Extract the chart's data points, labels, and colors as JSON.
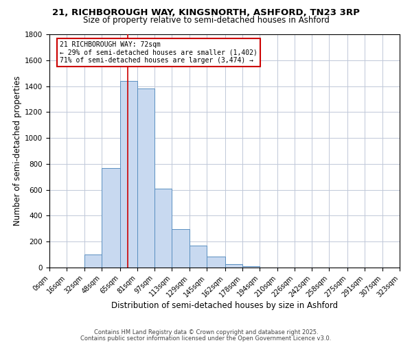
{
  "title_line1": "21, RICHBOROUGH WAY, KINGSNORTH, ASHFORD, TN23 3RP",
  "title_line2": "Size of property relative to semi-detached houses in Ashford",
  "xlabel": "Distribution of semi-detached houses by size in Ashford",
  "ylabel": "Number of semi-detached properties",
  "bin_edges": [
    0,
    16,
    32,
    48,
    65,
    81,
    97,
    113,
    129,
    145,
    162,
    178,
    194,
    210,
    226,
    242,
    258,
    275,
    291,
    307,
    323
  ],
  "bar_heights": [
    0,
    0,
    100,
    770,
    1440,
    1380,
    610,
    295,
    170,
    85,
    25,
    10,
    0,
    0,
    0,
    0,
    0,
    0,
    0,
    0
  ],
  "bar_color": "#c8d9f0",
  "bar_edgecolor": "#5a8fc0",
  "grid_color": "#c0c8d8",
  "ylim": [
    0,
    1800
  ],
  "yticks": [
    0,
    200,
    400,
    600,
    800,
    1000,
    1200,
    1400,
    1600,
    1800
  ],
  "xtick_labels": [
    "0sqm",
    "16sqm",
    "32sqm",
    "48sqm",
    "65sqm",
    "81sqm",
    "97sqm",
    "113sqm",
    "129sqm",
    "145sqm",
    "162sqm",
    "178sqm",
    "194sqm",
    "210sqm",
    "226sqm",
    "242sqm",
    "258sqm",
    "275sqm",
    "291sqm",
    "307sqm",
    "323sqm"
  ],
  "property_size": 72,
  "vline_color": "#cc0000",
  "annotation_title": "21 RICHBOROUGH WAY: 72sqm",
  "annotation_line2": "← 29% of semi-detached houses are smaller (1,402)",
  "annotation_line3": "71% of semi-detached houses are larger (3,474) →",
  "annotation_box_edgecolor": "#cc0000",
  "footer_line1": "Contains HM Land Registry data © Crown copyright and database right 2025.",
  "footer_line2": "Contains public sector information licensed under the Open Government Licence v3.0.",
  "background_color": "#ffffff"
}
